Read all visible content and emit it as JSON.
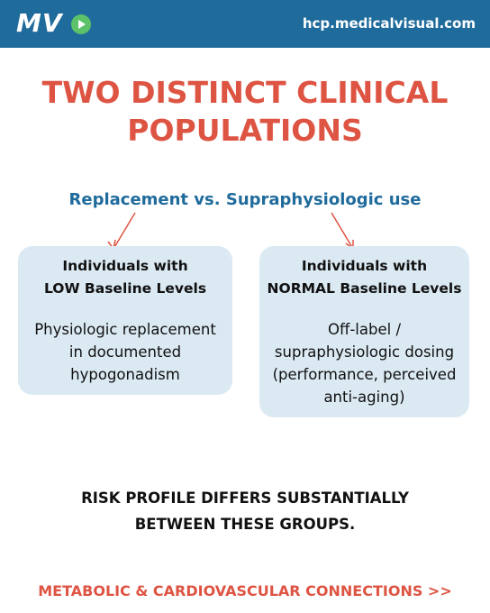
{
  "header": {
    "logo": "MV",
    "url": "hcp.medicalvisual.com"
  },
  "title": {
    "lines": [
      "TWO DISTINCT CLINICAL",
      "POPULATIONS"
    ]
  },
  "subtitle": "Replacement vs. Supraphysiologic use",
  "cards": [
    {
      "heading": [
        "Individuals with",
        "LOW Baseline Levels"
      ],
      "body": [
        "Physiologic replacement",
        "in documented",
        "hypogonadism"
      ]
    },
    {
      "heading": [
        "Individuals with",
        "NORMAL Baseline Levels"
      ],
      "body": [
        "Off-label /",
        "supraphysiologic dosing",
        "(performance, perceived",
        "anti-aging)"
      ]
    }
  ],
  "conclusion": [
    "RISK PROFILE DIFFERS SUBSTANTIALLY",
    "BETWEEN THESE GROUPS."
  ],
  "footer": "METABOLIC & CARDIOVASCULAR CONNECTIONS >>"
}
